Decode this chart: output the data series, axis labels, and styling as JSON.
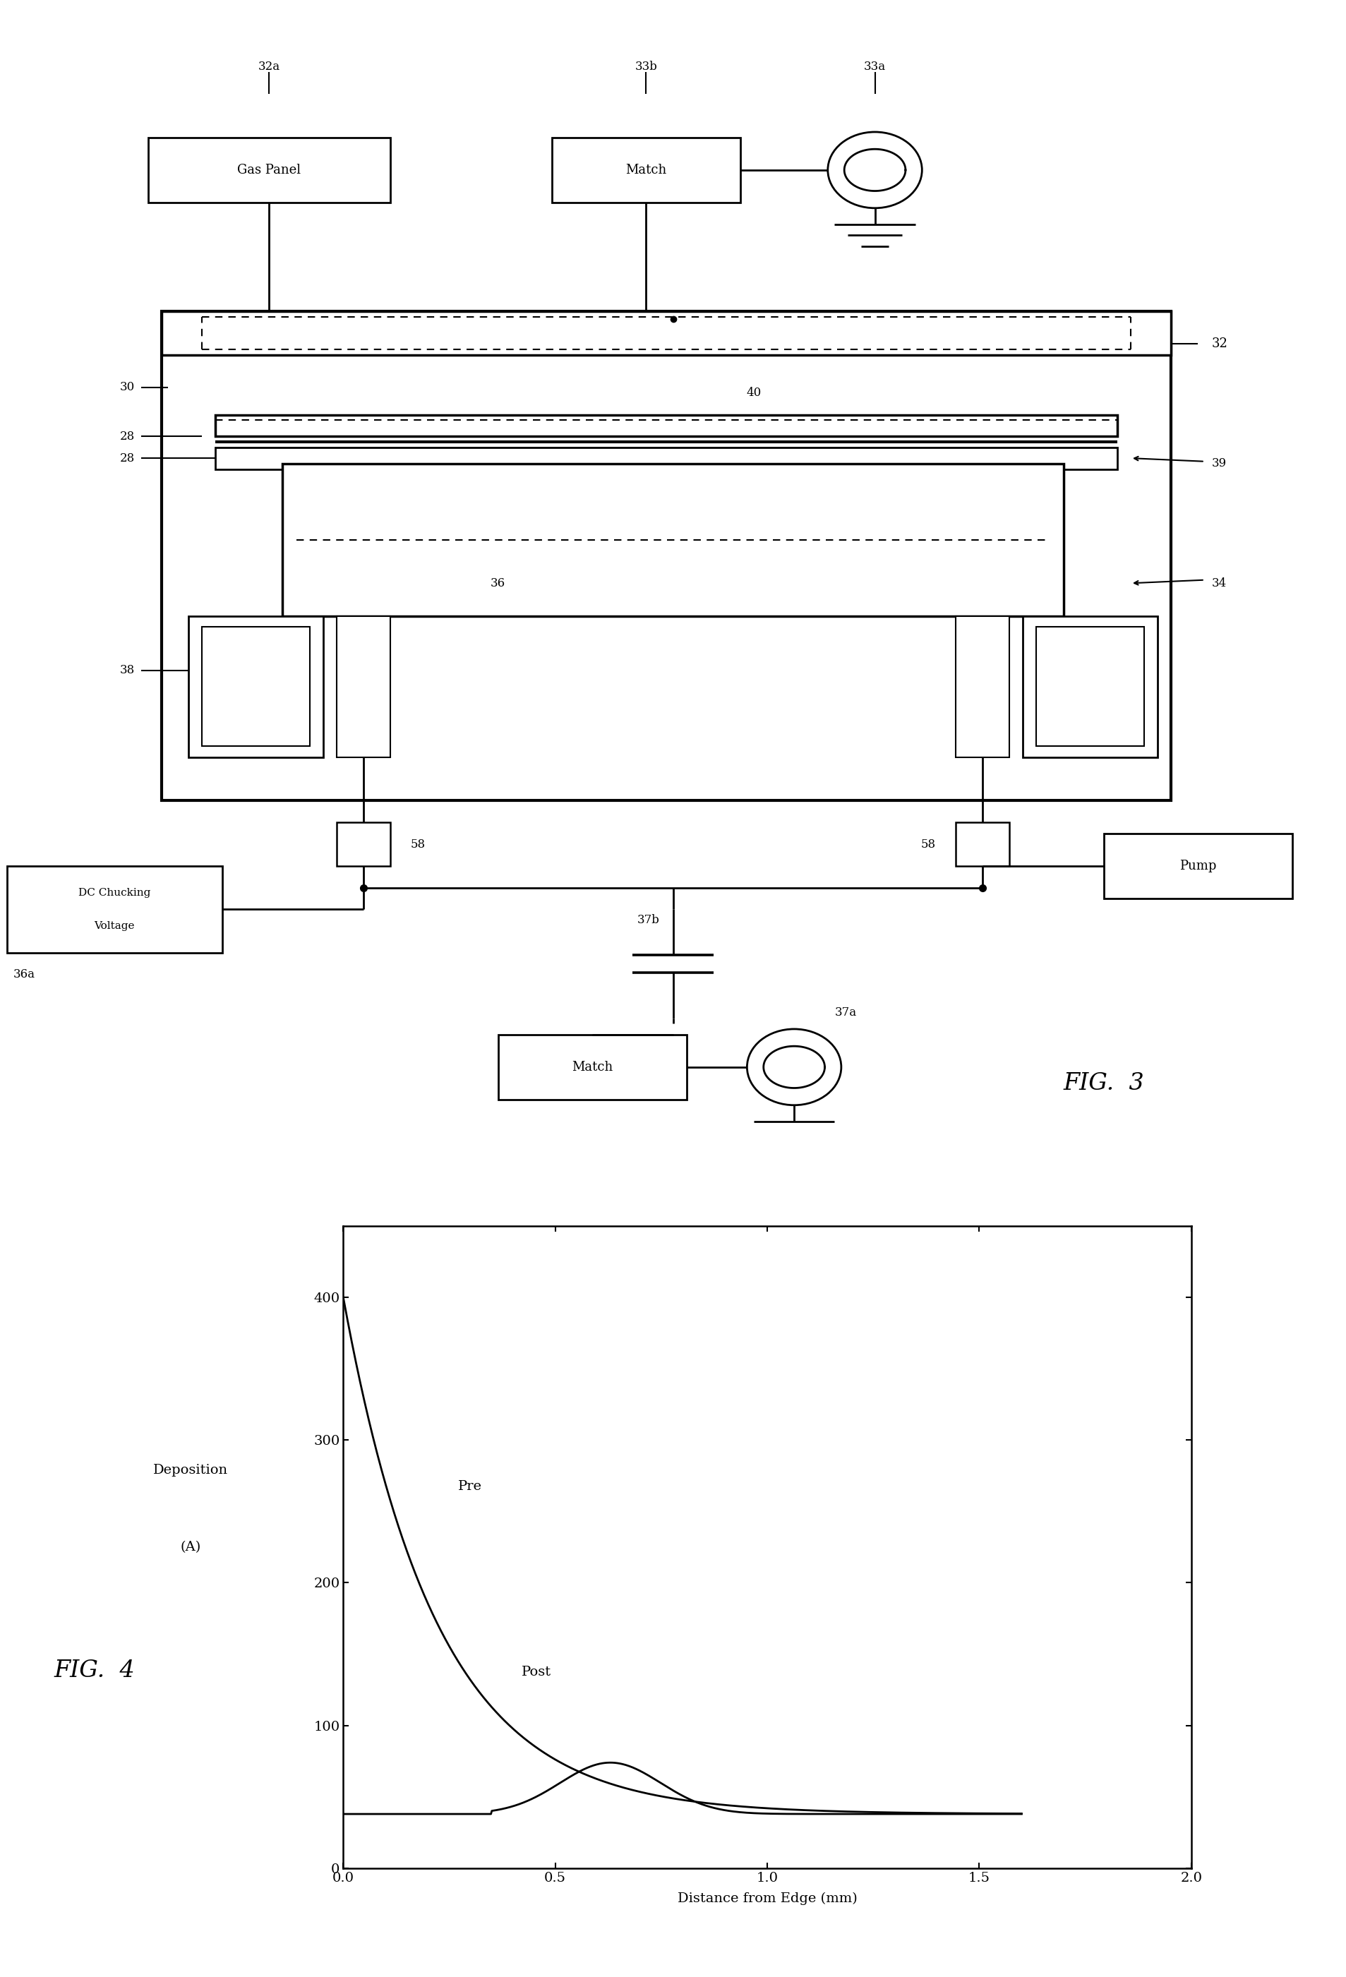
{
  "bg_color": "#ffffff",
  "fig3_label": "FIG.  3",
  "fig4_label": "FIG.  4",
  "graph": {
    "xlabel": "Distance from Edge (mm)",
    "ylabel_line1": "Deposition",
    "ylabel_line2": "(A)",
    "xlim": [
      0,
      2
    ],
    "ylim": [
      0,
      450
    ],
    "xticks": [
      0,
      0.5,
      1.0,
      1.5,
      2.0
    ],
    "yticks": [
      0,
      100,
      200,
      300,
      400
    ],
    "pre_label": "Pre",
    "post_label": "Post"
  }
}
